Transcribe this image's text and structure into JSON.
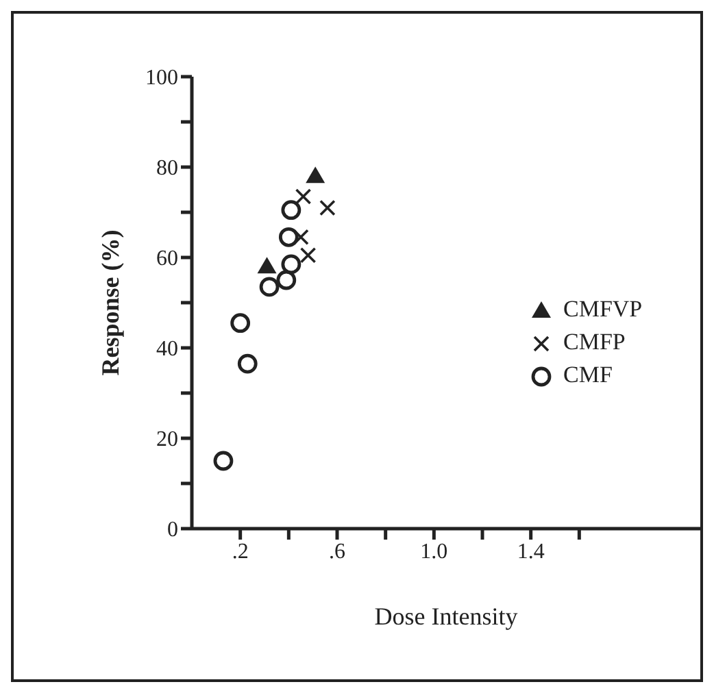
{
  "chart_data": {
    "type": "scatter",
    "xlabel": "Dose Intensity",
    "ylabel": "Response (%)",
    "xlim": [
      0,
      2.1
    ],
    "xticks": [
      {
        "value": 0.2,
        "label": ".2"
      },
      {
        "value": 0.4,
        "label": null
      },
      {
        "value": 0.6,
        "label": ".6"
      },
      {
        "value": 0.8,
        "label": null
      },
      {
        "value": 1.0,
        "label": "1.0"
      },
      {
        "value": 1.2,
        "label": null
      },
      {
        "value": 1.4,
        "label": "1.4"
      },
      {
        "value": 1.6,
        "label": null
      }
    ],
    "ylim": [
      0,
      100
    ],
    "yticks": [
      0,
      {
        "value": 10,
        "label": null
      },
      20,
      {
        "value": 30,
        "label": null
      },
      40,
      {
        "value": 50,
        "label": null
      },
      60,
      {
        "value": 70,
        "label": null
      },
      80,
      {
        "value": 90,
        "label": null
      },
      100
    ],
    "grid": false,
    "legend": "right",
    "series": [
      {
        "name": "CMFVP",
        "color": "#222222",
        "marker": "triangle",
        "x": [
          0.31,
          0.51
        ],
        "values": [
          58,
          78
        ]
      },
      {
        "name": "CMFP",
        "color": "#222222",
        "marker": "cross",
        "x": [
          0.46,
          0.56,
          0.45,
          0.48
        ],
        "values": [
          73.5,
          71,
          64.5,
          60.5
        ]
      },
      {
        "name": "CMF",
        "color": "#222222",
        "marker": "circle",
        "x": [
          0.13,
          0.2,
          0.23,
          0.32,
          0.39,
          0.41,
          0.4,
          0.41
        ],
        "values": [
          15,
          45.5,
          36.5,
          53.5,
          55,
          58.5,
          64.5,
          70.5
        ]
      }
    ]
  }
}
